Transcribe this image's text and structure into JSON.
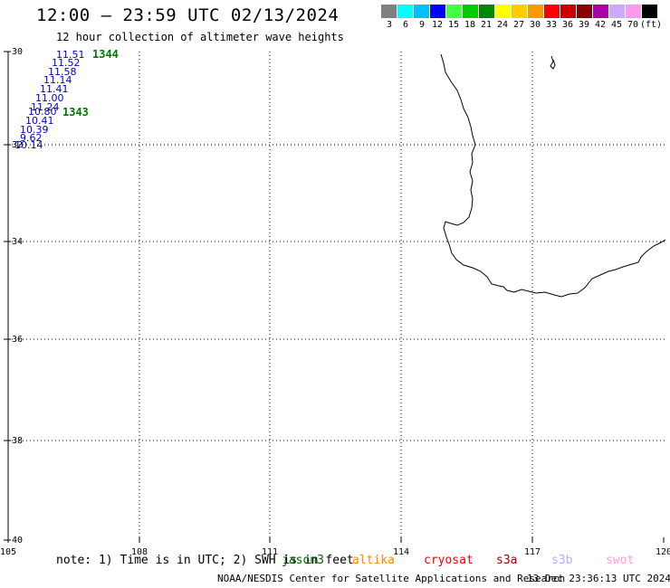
{
  "header": {
    "title": "12:00 – 23:59 UTC 02/13/2024",
    "subtitle": "12 hour collection of altimeter wave heights"
  },
  "legend": {
    "unit": "(ft)",
    "entries": [
      {
        "label": "3",
        "color": "#808080"
      },
      {
        "label": "6",
        "color": "#00ffff"
      },
      {
        "label": "9",
        "color": "#00c0ff"
      },
      {
        "label": "12",
        "color": "#0000ff"
      },
      {
        "label": "15",
        "color": "#44ff44"
      },
      {
        "label": "18",
        "color": "#00cc00"
      },
      {
        "label": "21",
        "color": "#008800"
      },
      {
        "label": "24",
        "color": "#ffff00"
      },
      {
        "label": "27",
        "color": "#ffcc00"
      },
      {
        "label": "30",
        "color": "#ff9900"
      },
      {
        "label": "33",
        "color": "#ff0000"
      },
      {
        "label": "36",
        "color": "#cc0000"
      },
      {
        "label": "39",
        "color": "#880000"
      },
      {
        "label": "42",
        "color": "#aa00aa"
      },
      {
        "label": "45",
        "color": "#ccaaff"
      },
      {
        "label": "70",
        "color": "#ff99ee"
      },
      {
        "label": "",
        "color": "#000000"
      }
    ]
  },
  "map": {
    "lat_labels": [
      "-30",
      "-32",
      "-34",
      "-36",
      "-38",
      "-40"
    ],
    "lon_labels": [
      "105",
      "108",
      "111",
      "114",
      "117",
      "120"
    ],
    "track_values": [
      "11.51",
      "11.52",
      "11.58",
      "11.14",
      "11.41",
      "11.00",
      "11.24",
      "10.80",
      "10.41",
      "10.39",
      "9.62",
      "10.14"
    ],
    "track_color": "#0000cc",
    "times": [
      "1344",
      "1343"
    ],
    "time_color": "#007700"
  },
  "footer": {
    "note": "note: 1) Time is in UTC; 2) SWH is in feet",
    "missions": [
      {
        "name": "jason3",
        "color": "#006600"
      },
      {
        "name": "altika",
        "color": "#ff8800"
      },
      {
        "name": "cryosat",
        "color": "#ee0000"
      },
      {
        "name": "s3a",
        "color": "#990000"
      },
      {
        "name": "s3b",
        "color": "#bbaaff"
      },
      {
        "name": "swot",
        "color": "#ff99dd"
      }
    ],
    "credit": "NOAA/NESDIS Center for Satellite Applications and Research",
    "timestamp": "13 Dec 23:36:13 UTC 2024"
  }
}
